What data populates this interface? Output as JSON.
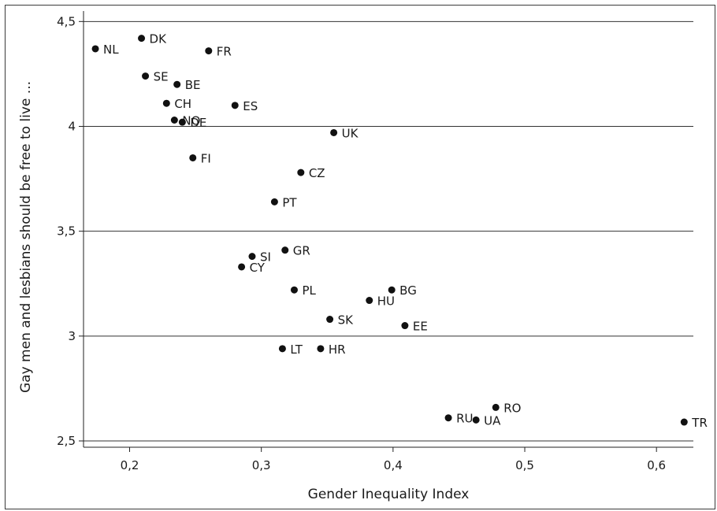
{
  "chart_data": {
    "type": "scatter",
    "title": "",
    "xlabel": "Gender Inequality Index",
    "ylabel": "Gay men and lesbians should be free to live ...",
    "xlim": [
      0.165,
      0.628
    ],
    "ylim": [
      2.47,
      4.55
    ],
    "x_ticks": [
      0.2,
      0.3,
      0.4,
      0.5,
      0.6
    ],
    "x_tick_labels": [
      "0,2",
      "0,3",
      "0,4",
      "0,5",
      "0,6"
    ],
    "y_ticks": [
      2.5,
      3,
      3.5,
      4,
      4.5
    ],
    "y_tick_labels": [
      "2,5",
      "3",
      "3,5",
      "4",
      "4,5"
    ],
    "grid": "horizontal",
    "points": [
      {
        "label": "NL",
        "x": 0.174,
        "y": 4.37
      },
      {
        "label": "DK",
        "x": 0.209,
        "y": 4.42
      },
      {
        "label": "FR",
        "x": 0.26,
        "y": 4.36
      },
      {
        "label": "SE",
        "x": 0.212,
        "y": 4.24
      },
      {
        "label": "BE",
        "x": 0.236,
        "y": 4.2
      },
      {
        "label": "CH",
        "x": 0.228,
        "y": 4.11
      },
      {
        "label": "ES",
        "x": 0.28,
        "y": 4.1
      },
      {
        "label": "NO",
        "x": 0.234,
        "y": 4.03
      },
      {
        "label": "DE",
        "x": 0.24,
        "y": 4.02
      },
      {
        "label": "UK",
        "x": 0.355,
        "y": 3.97
      },
      {
        "label": "FI",
        "x": 0.248,
        "y": 3.85
      },
      {
        "label": "CZ",
        "x": 0.33,
        "y": 3.78
      },
      {
        "label": "PT",
        "x": 0.31,
        "y": 3.64
      },
      {
        "label": "GR",
        "x": 0.318,
        "y": 3.41
      },
      {
        "label": "SI",
        "x": 0.293,
        "y": 3.38
      },
      {
        "label": "CY",
        "x": 0.285,
        "y": 3.33
      },
      {
        "label": "PL",
        "x": 0.325,
        "y": 3.22
      },
      {
        "label": "BG",
        "x": 0.399,
        "y": 3.22
      },
      {
        "label": "HU",
        "x": 0.382,
        "y": 3.17
      },
      {
        "label": "SK",
        "x": 0.352,
        "y": 3.08
      },
      {
        "label": "EE",
        "x": 0.409,
        "y": 3.05
      },
      {
        "label": "LT",
        "x": 0.316,
        "y": 2.94
      },
      {
        "label": "HR",
        "x": 0.345,
        "y": 2.94
      },
      {
        "label": "RO",
        "x": 0.478,
        "y": 2.66
      },
      {
        "label": "RU",
        "x": 0.442,
        "y": 2.61
      },
      {
        "label": "UA",
        "x": 0.463,
        "y": 2.6
      },
      {
        "label": "TR",
        "x": 0.621,
        "y": 2.59
      }
    ]
  }
}
